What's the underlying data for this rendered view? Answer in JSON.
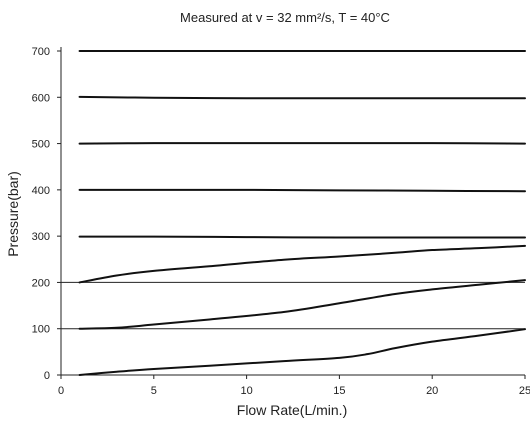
{
  "chart_data": {
    "type": "line",
    "title": "Measured at v = 32 mm²/s, T = 40°C",
    "xlabel": "Flow Rate(L/min.)",
    "ylabel": "Pressure(bar)",
    "xlim": [
      0,
      25
    ],
    "ylim": [
      0,
      700
    ],
    "xticks": [
      "0",
      "5",
      "10",
      "15",
      "20",
      "25"
    ],
    "yticks": [
      "0",
      "100",
      "200",
      "300",
      "400",
      "500",
      "600",
      "700"
    ],
    "grid": "horizontal lines at 100 and 200",
    "series": [
      {
        "x": [
          1,
          3,
          5,
          8,
          12,
          15,
          16.5,
          18,
          20,
          22.5,
          25
        ],
        "values": [
          0,
          7,
          13,
          20,
          30,
          37,
          45,
          58,
          72,
          85,
          99
        ]
      },
      {
        "x": [
          1,
          3,
          5,
          8,
          12,
          15,
          18,
          20,
          22.5,
          25
        ],
        "values": [
          100,
          102,
          109,
          120,
          136,
          155,
          175,
          185,
          195,
          205
        ]
      },
      {
        "x": [
          1,
          3,
          5,
          8,
          12,
          15,
          18,
          20,
          22.5,
          25
        ],
        "values": [
          200,
          215,
          225,
          235,
          249,
          256,
          264,
          270,
          274,
          279
        ]
      },
      {
        "x": [
          1,
          5,
          10,
          15,
          20,
          25
        ],
        "values": [
          299,
          299,
          298,
          297,
          297,
          297
        ]
      },
      {
        "x": [
          1,
          5,
          10,
          15,
          20,
          25
        ],
        "values": [
          400,
          400,
          400,
          399,
          398,
          397
        ]
      },
      {
        "x": [
          1,
          5,
          10,
          15,
          20,
          25
        ],
        "values": [
          500,
          501,
          501,
          501,
          501,
          500
        ]
      },
      {
        "x": [
          1,
          5,
          10,
          15,
          20,
          25
        ],
        "values": [
          601,
          599,
          598,
          598,
          598,
          598
        ]
      },
      {
        "x": [
          1,
          5,
          10,
          15,
          20,
          25
        ],
        "values": [
          700,
          700,
          700,
          700,
          700,
          700
        ]
      }
    ]
  }
}
